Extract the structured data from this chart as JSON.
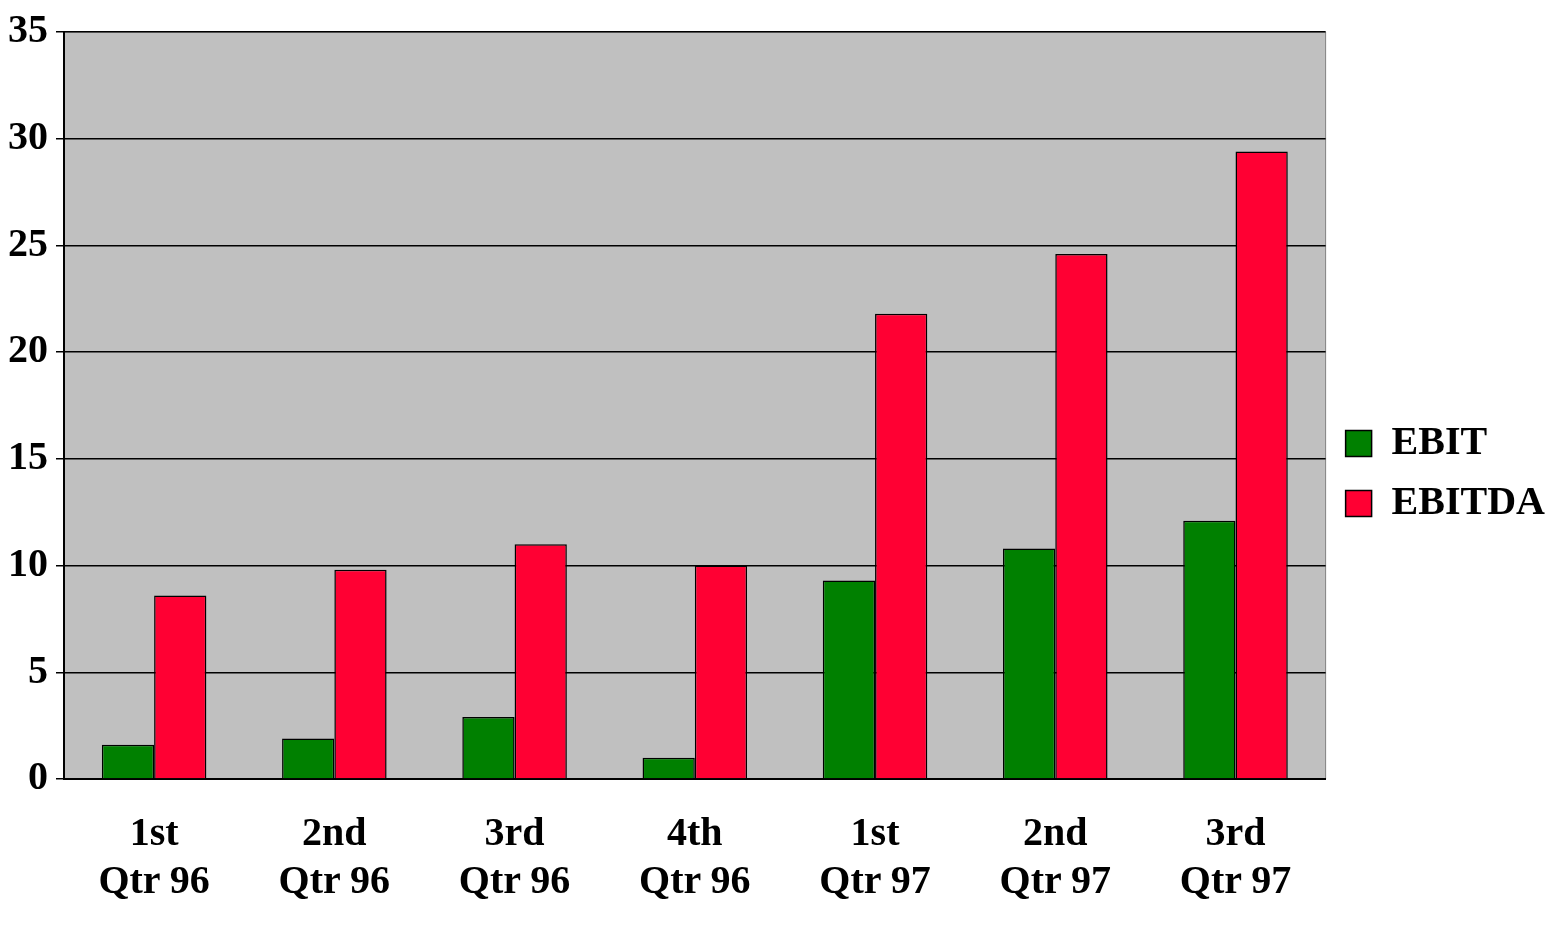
{
  "chart_data": {
    "type": "bar",
    "categories": [
      "1st Qtr 96",
      "2nd Qtr 96",
      "3rd Qtr 96",
      "4th Qtr 96",
      "1st Qtr 97",
      "2nd Qtr 97",
      "3rd Qtr 97"
    ],
    "series": [
      {
        "name": "EBIT",
        "color": "#008000",
        "values": [
          1.6,
          1.9,
          2.9,
          1.0,
          9.3,
          10.8,
          12.1
        ]
      },
      {
        "name": "EBITDA",
        "color": "#ff0033",
        "values": [
          8.6,
          9.8,
          11.0,
          10.0,
          21.8,
          24.6,
          29.4
        ]
      }
    ],
    "ylim": [
      0,
      35
    ],
    "yticks": [
      0,
      5,
      10,
      15,
      20,
      25,
      30,
      35
    ],
    "grid": "y",
    "legend": "right"
  }
}
